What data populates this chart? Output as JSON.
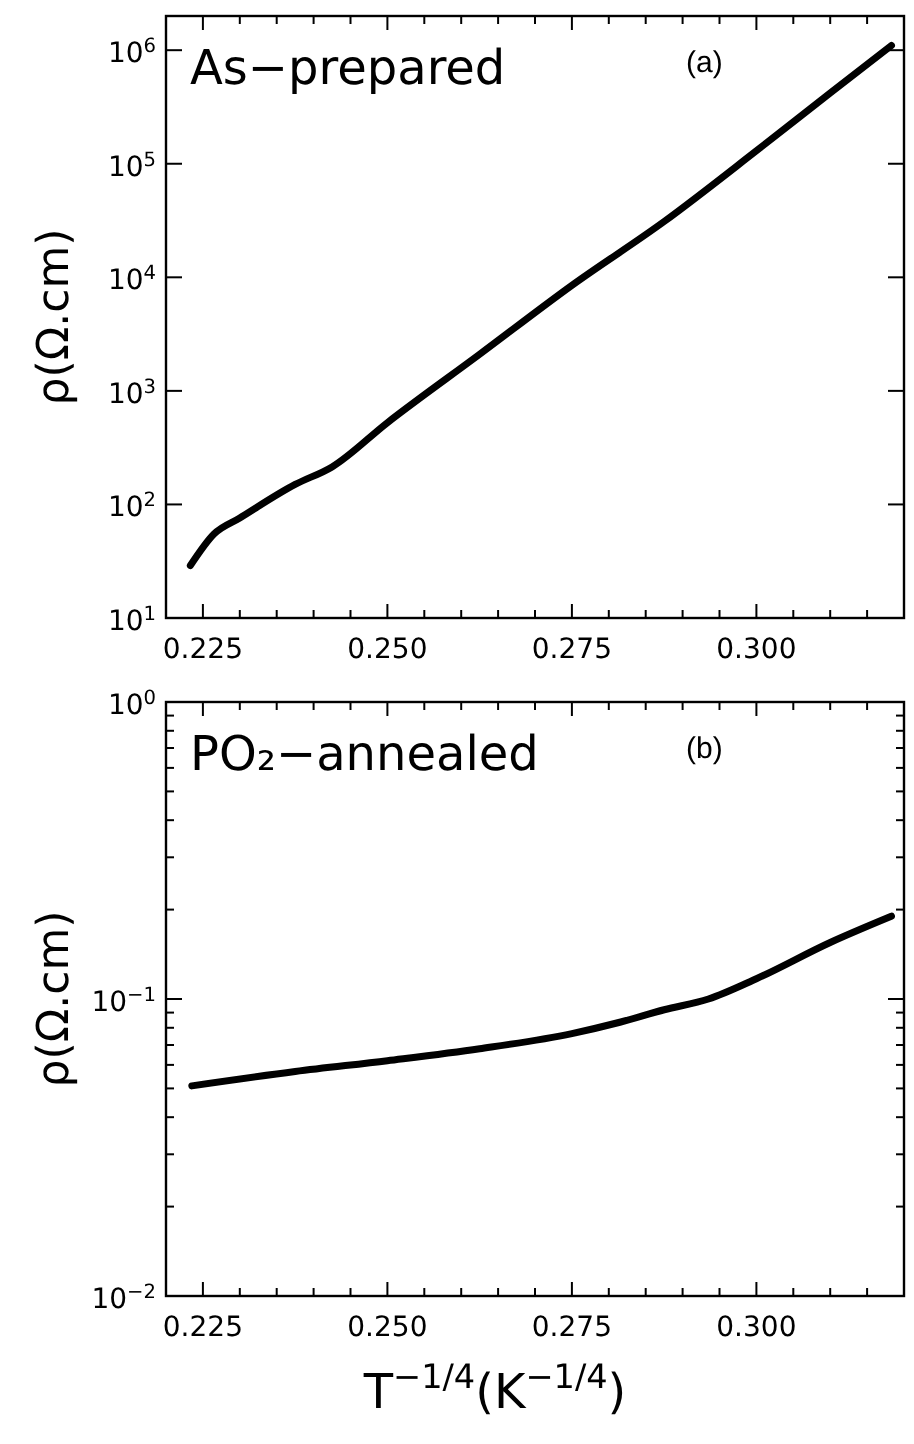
{
  "chart_data": [
    {
      "type": "line",
      "ylabel": "ρ(Ω.cm)",
      "annotations": [
        "As−prepared",
        "(a)"
      ],
      "log": "y",
      "grid": false,
      "xlim": [
        0.22,
        0.32
      ],
      "xticks": [
        {
          "value": 0.22,
          "label": null
        },
        {
          "value": 0.225,
          "label": "0.225"
        },
        {
          "value": 0.23,
          "label": null
        },
        {
          "value": 0.235,
          "label": null
        },
        {
          "value": 0.24,
          "label": null
        },
        {
          "value": 0.245,
          "label": null
        },
        {
          "value": 0.25,
          "label": "0.250"
        },
        {
          "value": 0.255,
          "label": null
        },
        {
          "value": 0.26,
          "label": null
        },
        {
          "value": 0.265,
          "label": null
        },
        {
          "value": 0.27,
          "label": null
        },
        {
          "value": 0.275,
          "label": "0.275"
        },
        {
          "value": 0.28,
          "label": null
        },
        {
          "value": 0.285,
          "label": null
        },
        {
          "value": 0.29,
          "label": null
        },
        {
          "value": 0.295,
          "label": null
        },
        {
          "value": 0.3,
          "label": "0.300"
        },
        {
          "value": 0.305,
          "label": null
        },
        {
          "value": 0.31,
          "label": null
        },
        {
          "value": 0.315,
          "label": null
        }
      ],
      "ylim": [
        10,
        2000000
      ],
      "yticks": [
        {
          "value": 10,
          "label": "10$^{1}$"
        },
        {
          "value": 100,
          "label": "10$^{2}$"
        },
        {
          "value": 1000,
          "label": "10$^{3}$"
        },
        {
          "value": 10000,
          "label": "10$^{4}$"
        },
        {
          "value": 100000,
          "label": "10$^{5}$"
        },
        {
          "value": 1000000,
          "label": "10$^{6}$"
        }
      ],
      "series": [
        {
          "color": "#000000",
          "x": [
            0.2233,
            0.2265,
            0.23,
            0.2375,
            0.2425,
            0.25,
            0.2625,
            0.275,
            0.2875,
            0.3,
            0.31,
            0.3183
          ],
          "values": [
            29,
            55,
            76,
            150,
            214,
            525,
            2100,
            8500,
            31000,
            130000,
            420000,
            1100000
          ]
        }
      ]
    },
    {
      "type": "line",
      "xlabel": "T$^{−1/4}$(K$^{−1/4}$)",
      "ylabel": "ρ(Ω.cm)",
      "annotations": [
        "PO₂−annealed",
        "(b)"
      ],
      "log": "y",
      "grid": false,
      "xlim": [
        0.22,
        0.32
      ],
      "xticks": [
        {
          "value": 0.22,
          "label": null
        },
        {
          "value": 0.225,
          "label": "0.225"
        },
        {
          "value": 0.23,
          "label": null
        },
        {
          "value": 0.235,
          "label": null
        },
        {
          "value": 0.24,
          "label": null
        },
        {
          "value": 0.245,
          "label": null
        },
        {
          "value": 0.25,
          "label": "0.250"
        },
        {
          "value": 0.255,
          "label": null
        },
        {
          "value": 0.26,
          "label": null
        },
        {
          "value": 0.265,
          "label": null
        },
        {
          "value": 0.27,
          "label": null
        },
        {
          "value": 0.275,
          "label": "0.275"
        },
        {
          "value": 0.28,
          "label": null
        },
        {
          "value": 0.285,
          "label": null
        },
        {
          "value": 0.29,
          "label": null
        },
        {
          "value": 0.295,
          "label": null
        },
        {
          "value": 0.3,
          "label": "0.300"
        },
        {
          "value": 0.305,
          "label": null
        },
        {
          "value": 0.31,
          "label": null
        },
        {
          "value": 0.315,
          "label": null
        }
      ],
      "ylim": [
        0.01,
        1
      ],
      "yticks": [
        {
          "value": 0.01,
          "label": "10$^{−2}$"
        },
        {
          "value": 0.02,
          "label": null
        },
        {
          "value": 0.03,
          "label": null
        },
        {
          "value": 0.04,
          "label": null
        },
        {
          "value": 0.05,
          "label": null
        },
        {
          "value": 0.06,
          "label": null
        },
        {
          "value": 0.07,
          "label": null
        },
        {
          "value": 0.08,
          "label": null
        },
        {
          "value": 0.09,
          "label": null
        },
        {
          "value": 0.1,
          "label": "10$^{−1}$"
        },
        {
          "value": 0.2,
          "label": null
        },
        {
          "value": 0.3,
          "label": null
        },
        {
          "value": 0.4,
          "label": null
        },
        {
          "value": 0.5,
          "label": null
        },
        {
          "value": 0.6,
          "label": null
        },
        {
          "value": 0.7,
          "label": null
        },
        {
          "value": 0.8,
          "label": null
        },
        {
          "value": 0.9,
          "label": null
        },
        {
          "value": 1,
          "label": "10$^{0}$"
        }
      ],
      "series": [
        {
          "color": "#000000",
          "x": [
            0.2235,
            0.2375,
            0.25,
            0.2625,
            0.275,
            0.2815,
            0.2875,
            0.2935,
            0.3,
            0.31,
            0.3183
          ],
          "values": [
            0.051,
            0.057,
            0.062,
            0.068,
            0.0765,
            0.0835,
            0.092,
            0.1,
            0.117,
            0.155,
            0.19
          ]
        }
      ]
    }
  ]
}
